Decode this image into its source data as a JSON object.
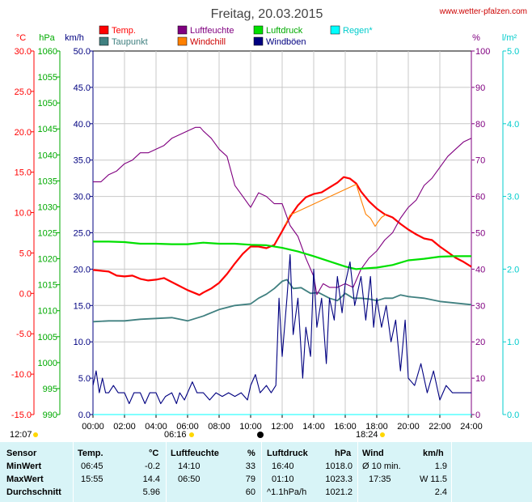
{
  "header": {
    "title": "Freitag, 20.03.2015",
    "site": "www.wetter-pfalzen.com"
  },
  "legend": [
    {
      "key": "temp",
      "label": "Temp.",
      "color": "#ff0000"
    },
    {
      "key": "humidity",
      "label": "Luftfeuchte",
      "color": "#800080"
    },
    {
      "key": "pressure",
      "label": "Luftdruck",
      "color": "#00e000"
    },
    {
      "key": "rain",
      "label": "Regen*",
      "color": "#00ffff"
    },
    {
      "key": "dewpoint",
      "label": "Taupunkt",
      "color": "#408080"
    },
    {
      "key": "windchill",
      "label": "Windchill",
      "color": "#ff8000"
    },
    {
      "key": "gusts",
      "label": "Windböen",
      "color": "#000080"
    }
  ],
  "axis_units": {
    "temp": "°C",
    "pressure": "hPa",
    "wind": "km/h",
    "humidity": "%",
    "rain": "l/m²"
  },
  "axis_ticks": {
    "temp": [
      "30.0",
      "25.0",
      "20.0",
      "15.0",
      "10.0",
      "5.0",
      "0.0",
      "-5.0",
      "-10.0",
      "-15.0"
    ],
    "pressure": [
      "1060",
      "1055",
      "1050",
      "1045",
      "1040",
      "1035",
      "1030",
      "1025",
      "1020",
      "1015",
      "1010",
      "1005",
      "1000",
      "995",
      "990"
    ],
    "wind": [
      "50.0",
      "45.0",
      "40.0",
      "35.0",
      "30.0",
      "25.0",
      "20.0",
      "15.0",
      "10.0",
      "5.0",
      "0.0"
    ],
    "humidity": [
      "100",
      "90",
      "80",
      "70",
      "60",
      "50",
      "40",
      "30",
      "20",
      "10",
      "0"
    ],
    "rain": [
      "5.0",
      "4.0",
      "3.0",
      "2.0",
      "1.0",
      "0.0"
    ],
    "time": [
      "00:00",
      "02:00",
      "04:00",
      "06:00",
      "08:00",
      "10:00",
      "12:00",
      "14:00",
      "16:00",
      "18:00",
      "20:00",
      "22:00",
      "24:00"
    ]
  },
  "sun": {
    "noon": "12:07",
    "sunrise": "06:16",
    "sunset": "18:24"
  },
  "stats": {
    "headers": {
      "sensor": "Sensor",
      "temp": "Temp.",
      "temp_unit": "°C",
      "hum": "Luftfeuchte",
      "hum_unit": "%",
      "press": "Luftdruck",
      "press_unit": "hPa",
      "wind": "Wind",
      "wind_unit": "km/h"
    },
    "rows": [
      {
        "label": "MinWert",
        "temp_time": "06:45",
        "temp_val": "-0.2",
        "hum_time": "14:10",
        "hum_val": "33",
        "press_time": "16:40",
        "press_val": "1018.0",
        "wind_time": "Ø 10 min.",
        "wind_val": "1.9"
      },
      {
        "label": "MaxWert",
        "temp_time": "15:55",
        "temp_val": "14.4",
        "hum_time": "06:50",
        "hum_val": "79",
        "press_time": "01:10",
        "press_val": "1023.3",
        "wind_time": "17:35",
        "wind_val": "W 11.5"
      },
      {
        "label": "Durchschnitt",
        "temp_time": "",
        "temp_val": "5.96",
        "hum_time": "",
        "hum_val": "60",
        "press_time": "^1.1hPa/h",
        "press_val": "1021.2",
        "wind_time": "",
        "wind_val": "2.4"
      }
    ]
  },
  "chart_data": {
    "type": "line",
    "title": "Freitag, 20.03.2015",
    "x_unit": "hour",
    "xlim": [
      0,
      24
    ],
    "series": [
      {
        "name": "Temp.",
        "axis": "°C",
        "color": "#ff0000",
        "ylim": [
          -15,
          30
        ],
        "points": [
          [
            0,
            2.9
          ],
          [
            0.5,
            2.8
          ],
          [
            1,
            2.7
          ],
          [
            1.5,
            2.2
          ],
          [
            2,
            2.1
          ],
          [
            2.5,
            2.2
          ],
          [
            3,
            1.8
          ],
          [
            3.5,
            1.6
          ],
          [
            4,
            1.7
          ],
          [
            4.5,
            1.9
          ],
          [
            5,
            1.4
          ],
          [
            5.5,
            0.9
          ],
          [
            6,
            0.4
          ],
          [
            6.5,
            0
          ],
          [
            6.75,
            -0.2
          ],
          [
            7,
            0.1
          ],
          [
            7.5,
            0.6
          ],
          [
            8,
            1.3
          ],
          [
            8.5,
            2.4
          ],
          [
            9,
            3.7
          ],
          [
            9.5,
            4.9
          ],
          [
            10,
            5.8
          ],
          [
            10.5,
            5.8
          ],
          [
            11,
            5.6
          ],
          [
            11.5,
            6
          ],
          [
            12,
            7.7
          ],
          [
            12.5,
            9.5
          ],
          [
            13,
            10.9
          ],
          [
            13.5,
            11.9
          ],
          [
            14,
            12.3
          ],
          [
            14.5,
            12.5
          ],
          [
            15,
            13.1
          ],
          [
            15.5,
            13.7
          ],
          [
            15.9,
            14.4
          ],
          [
            16.3,
            14.2
          ],
          [
            16.7,
            13.6
          ],
          [
            17,
            12.6
          ],
          [
            17.5,
            11.4
          ],
          [
            18,
            10.5
          ],
          [
            18.5,
            9.8
          ],
          [
            19,
            9.4
          ],
          [
            19.5,
            8.6
          ],
          [
            20,
            7.9
          ],
          [
            20.5,
            7.3
          ],
          [
            21,
            6.8
          ],
          [
            21.5,
            6.6
          ],
          [
            22,
            5.8
          ],
          [
            22.5,
            5.1
          ],
          [
            23,
            4.4
          ],
          [
            23.5,
            3.9
          ],
          [
            24,
            3.3
          ]
        ]
      },
      {
        "name": "Taupunkt",
        "axis": "°C",
        "color": "#408080",
        "ylim": [
          -15,
          30
        ],
        "points": [
          [
            0,
            -3.5
          ],
          [
            1,
            -3.4
          ],
          [
            2,
            -3.4
          ],
          [
            3,
            -3.2
          ],
          [
            4,
            -3.1
          ],
          [
            5,
            -3
          ],
          [
            6,
            -3.4
          ],
          [
            7,
            -2.8
          ],
          [
            8,
            -2
          ],
          [
            9,
            -1.5
          ],
          [
            10,
            -1.3
          ],
          [
            10.5,
            -0.6
          ],
          [
            11,
            -0.1
          ],
          [
            11.5,
            0.6
          ],
          [
            12,
            1.5
          ],
          [
            12.3,
            1.7
          ],
          [
            12.7,
            0.6
          ],
          [
            13.2,
            0.7
          ],
          [
            13.8,
            0
          ],
          [
            14.3,
            0.1
          ],
          [
            15,
            -0.6
          ],
          [
            15.5,
            -0.9
          ],
          [
            16,
            0
          ],
          [
            16.5,
            -0.6
          ],
          [
            17,
            -0.6
          ],
          [
            17.5,
            -0.7
          ],
          [
            18,
            -0.9
          ],
          [
            18.5,
            -0.6
          ],
          [
            19,
            -0.6
          ],
          [
            19.5,
            -0.2
          ],
          [
            20,
            -0.4
          ],
          [
            21,
            -0.6
          ],
          [
            22,
            -1
          ],
          [
            23,
            -1.2
          ],
          [
            24,
            -1.4
          ]
        ]
      },
      {
        "name": "Windchill",
        "axis": "°C",
        "color": "#ff8000",
        "ylim": [
          -15,
          30
        ],
        "points": [
          [
            12.2,
            8.5
          ],
          [
            12.5,
            9.7
          ],
          [
            16.7,
            13.5
          ],
          [
            17,
            11.6
          ],
          [
            17.3,
            9.8
          ],
          [
            17.6,
            9.3
          ],
          [
            17.9,
            8.3
          ],
          [
            18.1,
            8.9
          ],
          [
            18.3,
            9.4
          ],
          [
            18.6,
            9.8
          ]
        ]
      },
      {
        "name": "Luftfeuchte",
        "axis": "%",
        "color": "#800080",
        "ylim": [
          0,
          100
        ],
        "points": [
          [
            0,
            64
          ],
          [
            0.5,
            64
          ],
          [
            1,
            66
          ],
          [
            1.5,
            67
          ],
          [
            2,
            69
          ],
          [
            2.5,
            70
          ],
          [
            3,
            72
          ],
          [
            3.5,
            72
          ],
          [
            4,
            73
          ],
          [
            4.5,
            74
          ],
          [
            5,
            76
          ],
          [
            5.5,
            77
          ],
          [
            6,
            78
          ],
          [
            6.5,
            79
          ],
          [
            6.8,
            79
          ],
          [
            7,
            78
          ],
          [
            7.5,
            76
          ],
          [
            8,
            73
          ],
          [
            8.5,
            71
          ],
          [
            9,
            63
          ],
          [
            9.5,
            60
          ],
          [
            10,
            57
          ],
          [
            10.5,
            61
          ],
          [
            11,
            60
          ],
          [
            11.5,
            58
          ],
          [
            12,
            58
          ],
          [
            12.5,
            52
          ],
          [
            13,
            49
          ],
          [
            13.5,
            43
          ],
          [
            14,
            38
          ],
          [
            14.2,
            33
          ],
          [
            14.6,
            36
          ],
          [
            15,
            35
          ],
          [
            15.5,
            35
          ],
          [
            16,
            36
          ],
          [
            16.5,
            35
          ],
          [
            17,
            40
          ],
          [
            17.5,
            43
          ],
          [
            18,
            45
          ],
          [
            18.5,
            48
          ],
          [
            19,
            50
          ],
          [
            19.5,
            54
          ],
          [
            20,
            57
          ],
          [
            20.5,
            59
          ],
          [
            21,
            63
          ],
          [
            21.5,
            65
          ],
          [
            22,
            68
          ],
          [
            22.5,
            71
          ],
          [
            23,
            73
          ],
          [
            23.5,
            75
          ],
          [
            24,
            76
          ]
        ]
      },
      {
        "name": "Luftdruck",
        "axis": "hPa",
        "color": "#00e000",
        "ylim": [
          990,
          1060
        ],
        "points": [
          [
            0,
            1023.3
          ],
          [
            1,
            1023.3
          ],
          [
            2,
            1023.2
          ],
          [
            3,
            1022.9
          ],
          [
            4,
            1022.9
          ],
          [
            5,
            1022.8
          ],
          [
            6,
            1022.8
          ],
          [
            7,
            1023.1
          ],
          [
            8,
            1022.9
          ],
          [
            9,
            1022.9
          ],
          [
            10,
            1022.7
          ],
          [
            11,
            1022.6
          ],
          [
            12,
            1022.1
          ],
          [
            13,
            1021.4
          ],
          [
            14,
            1020.5
          ],
          [
            15,
            1019.5
          ],
          [
            16,
            1018.5
          ],
          [
            16.7,
            1018.0
          ],
          [
            17,
            1018.1
          ],
          [
            18,
            1018.3
          ],
          [
            19,
            1018.8
          ],
          [
            20,
            1019.7
          ],
          [
            21,
            1020.0
          ],
          [
            22,
            1020.4
          ],
          [
            23,
            1020.5
          ],
          [
            24,
            1020.5
          ]
        ]
      },
      {
        "name": "Windböen",
        "axis": "km/h",
        "color": "#000080",
        "ylim": [
          0,
          50
        ],
        "points": [
          [
            0,
            4
          ],
          [
            0.2,
            6
          ],
          [
            0.4,
            3
          ],
          [
            0.6,
            5
          ],
          [
            0.8,
            3
          ],
          [
            1,
            3
          ],
          [
            1.3,
            4
          ],
          [
            1.6,
            3
          ],
          [
            2,
            3
          ],
          [
            2.3,
            1.5
          ],
          [
            2.6,
            3
          ],
          [
            3,
            3
          ],
          [
            3.3,
            1.5
          ],
          [
            3.6,
            3
          ],
          [
            4,
            3
          ],
          [
            4.3,
            1.5
          ],
          [
            4.6,
            2.5
          ],
          [
            5,
            3
          ],
          [
            5.3,
            1.5
          ],
          [
            5.5,
            3
          ],
          [
            5.8,
            2
          ],
          [
            6,
            3
          ],
          [
            6.3,
            4.5
          ],
          [
            6.6,
            3
          ],
          [
            7,
            3
          ],
          [
            7.4,
            2
          ],
          [
            7.8,
            3
          ],
          [
            8.2,
            2.5
          ],
          [
            8.6,
            3
          ],
          [
            9,
            2.5
          ],
          [
            9.4,
            3
          ],
          [
            9.8,
            2
          ],
          [
            10,
            4
          ],
          [
            10.3,
            5.5
          ],
          [
            10.6,
            3
          ],
          [
            11,
            4
          ],
          [
            11.3,
            3
          ],
          [
            11.6,
            4
          ],
          [
            11.8,
            16
          ],
          [
            12,
            8
          ],
          [
            12.3,
            16
          ],
          [
            12.5,
            22
          ],
          [
            12.7,
            11
          ],
          [
            13,
            16
          ],
          [
            13.3,
            5
          ],
          [
            13.5,
            12
          ],
          [
            13.8,
            8
          ],
          [
            14,
            20
          ],
          [
            14.2,
            12
          ],
          [
            14.5,
            16
          ],
          [
            14.8,
            7
          ],
          [
            15,
            16
          ],
          [
            15.3,
            13
          ],
          [
            15.5,
            19
          ],
          [
            15.8,
            14
          ],
          [
            16,
            18
          ],
          [
            16.3,
            21
          ],
          [
            16.6,
            15
          ],
          [
            17,
            19
          ],
          [
            17.3,
            13
          ],
          [
            17.6,
            19
          ],
          [
            17.8,
            12
          ],
          [
            18,
            16
          ],
          [
            18.3,
            12
          ],
          [
            18.6,
            15
          ],
          [
            18.9,
            10
          ],
          [
            19.2,
            13
          ],
          [
            19.5,
            6
          ],
          [
            19.8,
            13
          ],
          [
            20,
            5
          ],
          [
            20.4,
            4
          ],
          [
            20.8,
            7
          ],
          [
            21.2,
            3
          ],
          [
            21.6,
            6
          ],
          [
            22,
            2
          ],
          [
            22.4,
            4
          ],
          [
            22.8,
            3
          ],
          [
            23.2,
            3
          ],
          [
            23.6,
            3
          ],
          [
            24,
            3
          ]
        ]
      },
      {
        "name": "Regen*",
        "axis": "l/m²",
        "color": "#00ffff",
        "ylim": [
          0,
          5
        ],
        "points": [
          [
            0,
            0
          ],
          [
            24,
            0
          ]
        ]
      }
    ]
  }
}
